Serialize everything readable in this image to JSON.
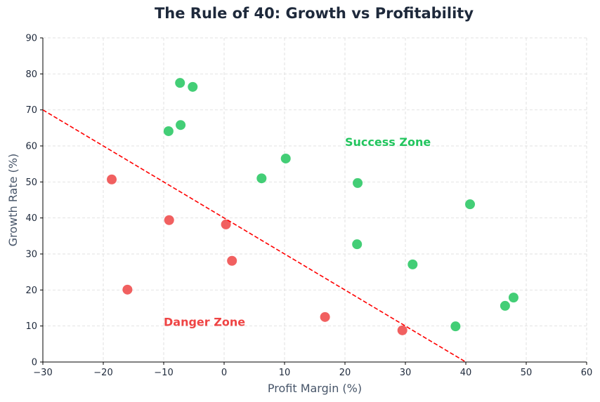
{
  "chart_data": {
    "type": "scatter",
    "title": "The Rule of 40: Growth vs Profitability",
    "xlabel": "Profit Margin (%)",
    "ylabel": "Growth Rate (%)",
    "xlim": [
      -30,
      60
    ],
    "ylim": [
      0,
      90
    ],
    "xticks": [
      {
        "value": -30,
        "label": "−30"
      },
      {
        "value": -20,
        "label": "−20"
      },
      {
        "value": -10,
        "label": "−10"
      },
      0,
      10,
      20,
      30,
      40,
      50,
      60
    ],
    "yticks": [
      0,
      10,
      20,
      30,
      40,
      50,
      60,
      70,
      80,
      90
    ],
    "grid": true,
    "series": [
      {
        "color": "#22c55e",
        "x": [
          -7.3,
          -5.2,
          -9.2,
          -7.2,
          6.2,
          10.2,
          22.1,
          22.0,
          31.2,
          40.7,
          38.3,
          46.5,
          47.9
        ],
        "values": [
          77.5,
          76.4,
          64.1,
          65.8,
          51.0,
          56.5,
          49.7,
          32.7,
          27.1,
          43.8,
          9.9,
          15.6,
          17.9
        ]
      },
      {
        "color": "#ef4444",
        "x": [
          -18.6,
          -9.1,
          0.3,
          1.3,
          -16.0,
          16.7,
          29.5
        ],
        "values": [
          50.7,
          39.4,
          38.2,
          28.1,
          20.1,
          12.5,
          8.8
        ]
      }
    ],
    "reference_line": {
      "color": "#ff0000",
      "x": [
        -30,
        40
      ],
      "values": [
        70,
        0
      ]
    },
    "annotations": [
      {
        "text": "Success Zone",
        "x": 20,
        "y": 60,
        "color": "#22c55e"
      },
      {
        "text": "Danger Zone",
        "x": -10,
        "y": 10,
        "color": "#ef4444"
      }
    ]
  }
}
